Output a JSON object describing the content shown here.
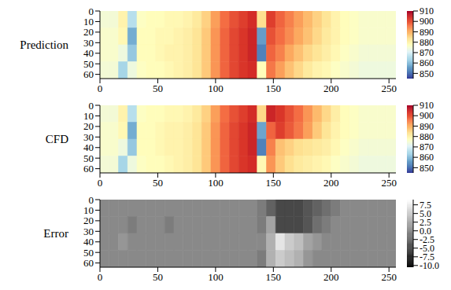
{
  "chart_data": [
    {
      "type": "heatmap",
      "title": "Prediction",
      "color": "RdYlBu_r",
      "xlim": [
        0,
        256
      ],
      "xticks": [
        0,
        50,
        100,
        150,
        200,
        250
      ],
      "ylim": [
        0,
        64
      ],
      "yticks": [
        0,
        10,
        20,
        30,
        40,
        50,
        60
      ],
      "x_edges": [
        0,
        8,
        16,
        24,
        32,
        40,
        48,
        56,
        64,
        72,
        80,
        88,
        96,
        104,
        112,
        120,
        128,
        136,
        144,
        152,
        160,
        168,
        176,
        184,
        192,
        200,
        208,
        216,
        224,
        232,
        240,
        248,
        256
      ],
      "y_edges": [
        0,
        16,
        32,
        48,
        64
      ],
      "cells": [
        [
          875,
          875,
          880,
          866,
          877,
          878,
          878,
          879,
          879,
          880,
          882,
          886,
          892,
          897,
          900,
          902,
          904,
          884,
          902,
          898,
          895,
          892,
          889,
          886,
          883,
          880,
          878,
          877,
          876,
          876,
          876,
          876
        ],
        [
          876,
          876,
          879,
          858,
          878,
          878,
          879,
          879,
          880,
          881,
          883,
          887,
          893,
          898,
          901,
          903,
          905,
          856,
          900,
          897,
          894,
          891,
          888,
          885,
          882,
          880,
          878,
          877,
          876,
          876,
          876,
          876
        ],
        [
          876,
          876,
          874,
          862,
          878,
          878,
          879,
          880,
          880,
          881,
          883,
          887,
          893,
          898,
          901,
          903,
          905,
          853,
          898,
          895,
          891,
          888,
          885,
          883,
          881,
          879,
          877,
          876,
          875,
          875,
          875,
          875
        ],
        [
          875,
          875,
          864,
          874,
          877,
          878,
          878,
          879,
          880,
          881,
          883,
          887,
          893,
          898,
          901,
          903,
          904,
          878,
          896,
          892,
          888,
          885,
          882,
          880,
          879,
          877,
          876,
          875,
          874,
          874,
          874,
          874
        ]
      ],
      "colorbar_range": [
        845,
        910
      ],
      "colorbar_ticks": [
        850,
        860,
        870,
        880,
        890,
        900,
        910
      ]
    },
    {
      "type": "heatmap",
      "title": "CFD",
      "color": "RdYlBu_r",
      "xlim": [
        0,
        256
      ],
      "xticks": [
        0,
        50,
        100,
        150,
        200,
        250
      ],
      "ylim": [
        0,
        64
      ],
      "yticks": [
        0,
        10,
        20,
        30,
        40,
        50,
        60
      ],
      "x_edges": [
        0,
        8,
        16,
        24,
        32,
        40,
        48,
        56,
        64,
        72,
        80,
        88,
        96,
        104,
        112,
        120,
        128,
        136,
        144,
        152,
        160,
        168,
        176,
        184,
        192,
        200,
        208,
        216,
        224,
        232,
        240,
        248,
        256
      ],
      "y_edges": [
        0,
        16,
        32,
        48,
        64
      ],
      "cells": [
        [
          875,
          875,
          880,
          866,
          877,
          878,
          878,
          879,
          879,
          880,
          882,
          886,
          892,
          897,
          900,
          902,
          904,
          885,
          905,
          903,
          900,
          897,
          893,
          889,
          885,
          881,
          878,
          877,
          876,
          876,
          876,
          876
        ],
        [
          876,
          876,
          879,
          858,
          878,
          878,
          879,
          880,
          880,
          881,
          883,
          887,
          893,
          898,
          901,
          903,
          905,
          857,
          898,
          902,
          899,
          896,
          892,
          887,
          883,
          880,
          878,
          877,
          876,
          876,
          876,
          876
        ],
        [
          876,
          876,
          874,
          862,
          878,
          878,
          879,
          880,
          880,
          881,
          883,
          887,
          893,
          898,
          901,
          903,
          905,
          853,
          895,
          888,
          886,
          884,
          883,
          882,
          881,
          879,
          877,
          876,
          875,
          875,
          875,
          875
        ],
        [
          875,
          875,
          864,
          874,
          877,
          878,
          878,
          879,
          880,
          881,
          883,
          887,
          893,
          898,
          901,
          903,
          904,
          879,
          893,
          887,
          884,
          882,
          881,
          880,
          879,
          877,
          876,
          875,
          874,
          874,
          874,
          874
        ]
      ],
      "colorbar_range": [
        845,
        910
      ],
      "colorbar_ticks": [
        850,
        860,
        870,
        880,
        890,
        900,
        910
      ]
    },
    {
      "type": "heatmap",
      "title": "Error",
      "color": "gray",
      "xlim": [
        0,
        256
      ],
      "xticks": [
        0,
        50,
        100,
        150,
        200,
        250
      ],
      "ylim": [
        0,
        64
      ],
      "yticks": [
        0,
        10,
        20,
        30,
        40,
        50,
        60
      ],
      "x_edges": [
        0,
        8,
        16,
        24,
        32,
        40,
        48,
        56,
        64,
        72,
        80,
        88,
        96,
        104,
        112,
        120,
        128,
        136,
        144,
        152,
        160,
        168,
        176,
        184,
        192,
        200,
        208,
        216,
        224,
        232,
        240,
        248,
        256
      ],
      "y_edges": [
        0,
        16,
        32,
        48,
        64
      ],
      "cells": [
        [
          0,
          0,
          0,
          0,
          0,
          0,
          0,
          0,
          0,
          0,
          0,
          0,
          0,
          0,
          0,
          0,
          0,
          -1,
          -3,
          -5,
          -5,
          -5,
          -4,
          -3,
          -2,
          -1,
          0,
          0,
          0,
          0,
          0,
          0
        ],
        [
          0,
          0,
          0,
          -1,
          0,
          0,
          0,
          -1,
          0,
          0,
          0,
          0,
          0,
          0,
          0,
          0,
          0,
          -1,
          2,
          -5,
          -5,
          -5,
          -4,
          -2,
          -1,
          0,
          0,
          0,
          0,
          0,
          0,
          0
        ],
        [
          0,
          0,
          1,
          0,
          0,
          0,
          0,
          0,
          0,
          0,
          0,
          0,
          0,
          0,
          0,
          0,
          0,
          0,
          3,
          7,
          5,
          4,
          2,
          1,
          0,
          0,
          0,
          0,
          0,
          0,
          0,
          0
        ],
        [
          0,
          0,
          0,
          0,
          0,
          0,
          0,
          0,
          0,
          0,
          0,
          0,
          0,
          0,
          0,
          0,
          0,
          -1,
          3,
          5,
          4,
          3,
          1,
          0,
          0,
          0,
          0,
          0,
          0,
          0,
          0,
          0
        ]
      ],
      "colorbar_range": [
        -10.5,
        9
      ],
      "colorbar_ticks": [
        {
          "value": 7.5,
          "label": "7.5"
        },
        {
          "value": 5,
          "label": "5.0"
        },
        {
          "value": 2.5,
          "label": "2.5"
        },
        {
          "value": 0,
          "label": "0.0"
        },
        {
          "value": -2.5,
          "label": "-2.5"
        },
        {
          "value": -5,
          "label": "-5.0"
        },
        {
          "value": -7.5,
          "label": "-7.5"
        },
        {
          "value": -10,
          "label": "-10.0"
        }
      ]
    }
  ]
}
